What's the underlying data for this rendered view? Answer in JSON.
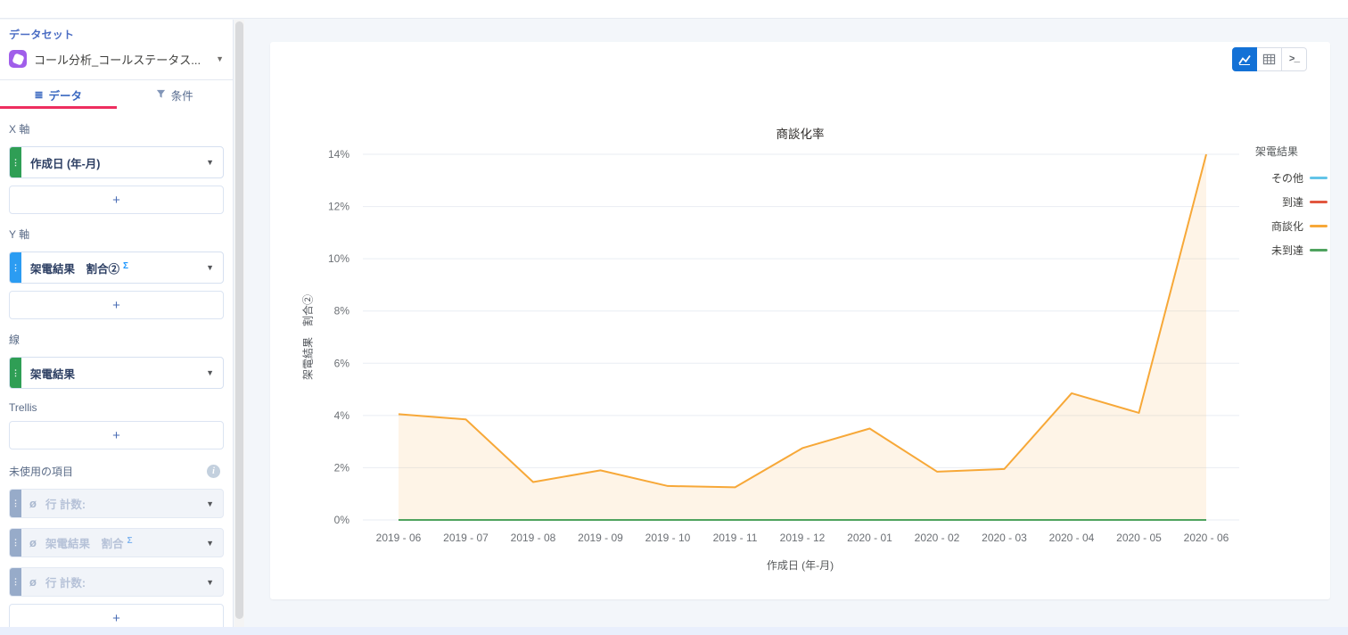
{
  "sidebar": {
    "dataset_label": "データセット",
    "dataset_name": "コール分析_コールステータス...",
    "tabs": {
      "data": "データ",
      "filter": "条件"
    },
    "x_axis": {
      "label": "X 軸",
      "field": "作成日 (年-月)"
    },
    "y_axis": {
      "label": "Y 軸",
      "field": "架電結果　割合②",
      "sigma": "Σ"
    },
    "line": {
      "label": "線",
      "field": "架電結果"
    },
    "trellis_label": "Trellis",
    "unused": {
      "label": "未使用の項目",
      "items": [
        {
          "label": "行 計数:",
          "sigma": ""
        },
        {
          "label": "架電結果　割合",
          "sigma": "Σ"
        },
        {
          "label": "行 計数:",
          "sigma": ""
        }
      ]
    },
    "add_button": "+"
  },
  "toolbar": {
    "views": [
      "chart",
      "table",
      "query"
    ],
    "active_view": "chart"
  },
  "colors": {
    "tab_underline": "#ee2e5f",
    "dataset_icon": "#a05eea",
    "active_button": "#1371d6",
    "pill_green": "#2f9e55",
    "pill_blue": "#2b9cf2"
  },
  "chart_data": {
    "type": "line",
    "title": "商談化率",
    "xlabel": "作成日 (年-月)",
    "ylabel": "架電結果　割合②",
    "legend_title": "架電結果",
    "legend_position": "right",
    "grid": true,
    "ylim": [
      0,
      14
    ],
    "ytick_step": 2,
    "ytick_format": "percent",
    "categories": [
      "2019 - 06",
      "2019 - 07",
      "2019 - 08",
      "2019 - 09",
      "2019 - 10",
      "2019 - 11",
      "2019 - 12",
      "2020 - 01",
      "2020 - 02",
      "2020 - 03",
      "2020 - 04",
      "2020 - 05",
      "2020 - 06"
    ],
    "series": [
      {
        "name": "その他",
        "color": "#63c4e8",
        "values": [
          0,
          0,
          0,
          0,
          0,
          0,
          0,
          0,
          0,
          0,
          0,
          0,
          0
        ]
      },
      {
        "name": "到達",
        "color": "#e2573f",
        "values": [
          0,
          0,
          0,
          0,
          0,
          0,
          0,
          0,
          0,
          0,
          0,
          0,
          0
        ]
      },
      {
        "name": "商談化",
        "color": "#f7a838",
        "area": true,
        "values": [
          4.05,
          3.85,
          1.45,
          1.9,
          1.3,
          1.25,
          2.75,
          3.5,
          1.85,
          1.95,
          4.85,
          4.1,
          14
        ]
      },
      {
        "name": "未到達",
        "color": "#4fa35f",
        "values": [
          0,
          0,
          0,
          0,
          0,
          0,
          0,
          0,
          0,
          0,
          0,
          0,
          0
        ]
      }
    ]
  }
}
